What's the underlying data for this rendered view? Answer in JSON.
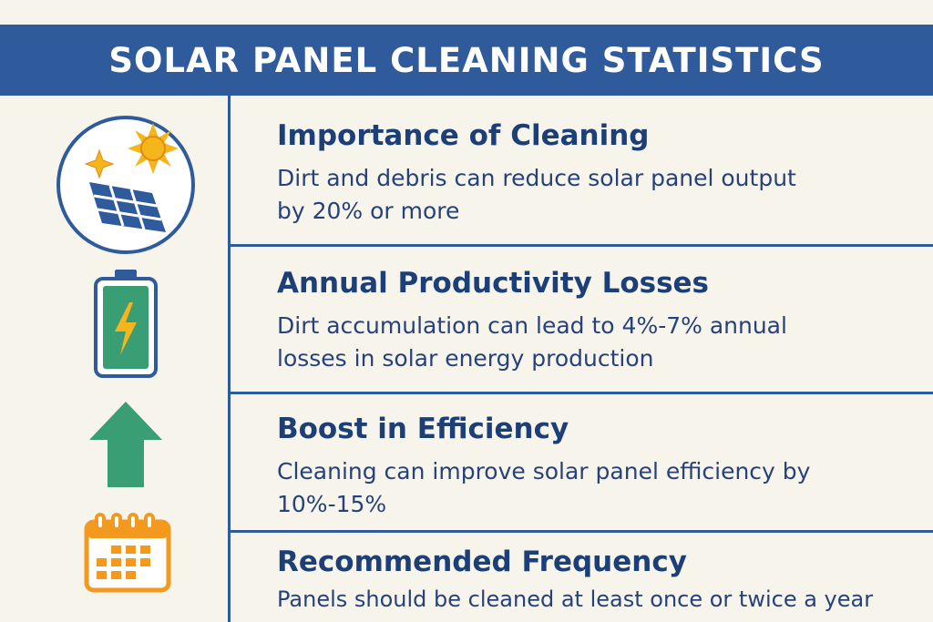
{
  "header": {
    "title": "SOLAR PANEL CLEANING STATISTICS"
  },
  "colors": {
    "header_bg": "#2f5b9c",
    "title_text": "#1c3f78",
    "body_text": "#27427a",
    "accent_green": "#3a9e74",
    "accent_yellow": "#f5b51b",
    "accent_orange": "#f39a1e",
    "background": "#f6f4eb"
  },
  "sections": [
    {
      "icon": "solar-panel-icon",
      "title": "Importance of Cleaning",
      "body": "Dirt and debris can reduce solar panel output by 20% or more"
    },
    {
      "icon": "battery-charging-icon",
      "title": "Annual Productivity Losses",
      "body": "Dirt accumulation can lead to 4%-7% annual losses in solar energy production"
    },
    {
      "icon": "arrow-up-icon",
      "title": "Boost in Efficiency",
      "body": "Cleaning can improve solar panel efficiency by 10%-15%"
    },
    {
      "icon": "calendar-icon",
      "title": "Recommended Frequency",
      "body": "Panels should be cleaned at least once or twice a year"
    }
  ]
}
